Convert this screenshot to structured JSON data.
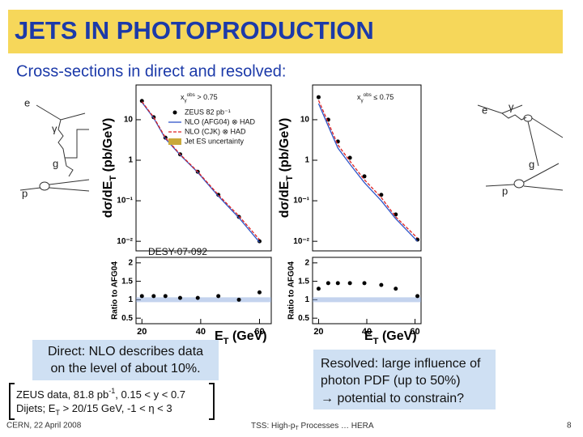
{
  "header": {
    "title": "JETS IN PHOTOPRODUCTION",
    "subtitle": "Cross-sections in direct and resolved:"
  },
  "diagrams": {
    "left": {
      "labels": [
        "e",
        "γ",
        "g",
        "p"
      ]
    },
    "right": {
      "labels": [
        "e",
        "γ",
        "g",
        "p"
      ]
    }
  },
  "chart_data": [
    {
      "type": "line",
      "log_y": true,
      "legend": true,
      "cut": {
        "var": "x",
        "sub": "γ",
        "sup": "obs",
        "rel": " > 0.75"
      },
      "ylabel": {
        "main": "dσ/dE",
        "sub": "T",
        "unit": " (pb/GeV)"
      },
      "annotation": "DESY-07-092",
      "xlim": [
        18,
        64
      ],
      "ylim": [
        0.0058,
        72
      ],
      "yticks": [
        10,
        1,
        {
          "value": 0.1,
          "label": "10⁻¹"
        },
        {
          "value": 0.01,
          "label": "10⁻²"
        }
      ],
      "x": [
        20,
        24,
        28,
        33,
        39,
        46,
        53,
        60
      ],
      "series": [
        {
          "name": "ZEUS 82 pb⁻¹",
          "color": "#000000",
          "mode": "markers",
          "values": [
            29,
            11.5,
            3.6,
            1.4,
            0.52,
            0.14,
            0.04,
            0.01
          ]
        },
        {
          "name": "NLO (AFG04) ⊗ HAD",
          "color": "#2f55c8",
          "mode": "line",
          "values": [
            27,
            11,
            3.4,
            1.35,
            0.5,
            0.13,
            0.038,
            0.0095
          ]
        },
        {
          "name": "NLO (CJK) ⊗ HAD",
          "color": "#dd2222",
          "mode": "dashed",
          "values": [
            28,
            11.5,
            3.6,
            1.4,
            0.52,
            0.14,
            0.042,
            0.011
          ]
        }
      ],
      "band": {
        "name": "Jet ES uncertainty",
        "color": "#c9a93a"
      }
    },
    {
      "type": "line",
      "log_y": true,
      "legend": false,
      "cut": {
        "var": "x",
        "sub": "γ",
        "sup": "obs",
        "rel": " ≤ 0.75"
      },
      "ylabel": {
        "main": "dσ/dE",
        "sub": "T",
        "unit": " (pb/GeV)"
      },
      "xlim": [
        17.5,
        62.5
      ],
      "ylim": [
        0.0058,
        72
      ],
      "yticks": [
        10,
        1,
        {
          "value": 0.1,
          "label": "10⁻¹"
        },
        {
          "value": 0.01,
          "label": "10⁻²"
        }
      ],
      "x": [
        20,
        24,
        28,
        33,
        39,
        46,
        52,
        61
      ],
      "series": [
        {
          "name": "ZEUS 82 pb⁻¹",
          "color": "#000000",
          "mode": "markers",
          "values": [
            36,
            10,
            2.9,
            1.15,
            0.4,
            0.14,
            0.046,
            0.011
          ]
        },
        {
          "name": "NLO (AFG04) ⊗ HAD",
          "color": "#2f55c8",
          "mode": "line",
          "values": [
            25,
            7,
            2.0,
            0.8,
            0.28,
            0.1,
            0.036,
            0.01
          ]
        },
        {
          "name": "NLO (CJK) ⊗ HAD",
          "color": "#dd2222",
          "mode": "dashed",
          "values": [
            30,
            8.5,
            2.4,
            0.95,
            0.33,
            0.12,
            0.04,
            0.012
          ]
        }
      ]
    },
    {
      "type": "scatter",
      "ylabel": "Ratio to AFG04",
      "xlabel": {
        "main": "E",
        "sub": "T",
        "unit": " (GeV)"
      },
      "xlim": [
        18,
        64
      ],
      "ylim": [
        0.35,
        2.15
      ],
      "yticks": [
        0.5,
        1,
        1.5,
        2
      ],
      "xticks": [
        20,
        40,
        60
      ],
      "x": [
        20,
        24,
        28,
        33,
        39,
        46,
        53,
        60
      ],
      "series": [
        {
          "color": "#000000",
          "values": [
            1.1,
            1.1,
            1.1,
            1.05,
            1.05,
            1.1,
            1.0,
            1.2
          ]
        }
      ]
    },
    {
      "type": "scatter",
      "ylabel": "Ratio to AFG04",
      "xlabel": {
        "main": "E",
        "sub": "T",
        "unit": " (GeV)"
      },
      "xlim": [
        17.5,
        62.5
      ],
      "ylim": [
        0.35,
        2.15
      ],
      "yticks": [
        0.5,
        1,
        1.5,
        2
      ],
      "xticks": [
        20,
        40,
        60
      ],
      "x": [
        20,
        24,
        28,
        33,
        39,
        46,
        52,
        61
      ],
      "series": [
        {
          "color": "#000000",
          "values": [
            1.3,
            1.45,
            1.45,
            1.45,
            1.45,
            1.4,
            1.3,
            1.1
          ]
        }
      ]
    }
  ],
  "boxes": {
    "direct": [
      "Direct: NLO describes data",
      "on the level of about 10%."
    ],
    "resolved": [
      "Resolved: large influence of",
      "photon PDF (up to 50%)",
      "→ potential to constrain?"
    ]
  },
  "note": {
    "line1": {
      "a": "ZEUS data, 81.8 pb",
      "sup": "-1",
      "b": ", 0.15 < y < 0.7"
    },
    "line2": {
      "a": "Dijets; E",
      "sub": "T",
      "b": " > 20/15 GeV, -1 < η < 3"
    }
  },
  "footer": {
    "left": "CERN, 22 April 2008",
    "center": {
      "a": "TSS: High-p",
      "sub": "T",
      "b": " Processes … HERA"
    },
    "page": "8"
  }
}
